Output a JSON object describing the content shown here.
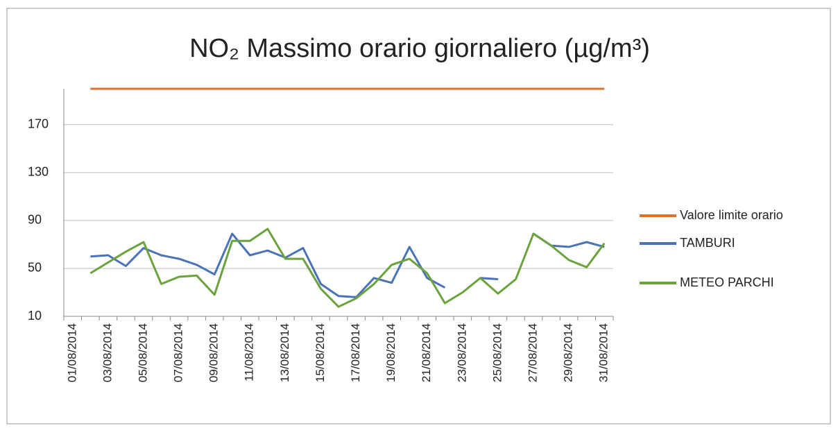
{
  "chart_data": {
    "type": "line",
    "title": "NO₂ Massimo orario giornaliero (µg/m³)",
    "categories": [
      "01/08/2014",
      null,
      "03/08/2014",
      null,
      "05/08/2014",
      null,
      "07/08/2014",
      null,
      "09/08/2014",
      null,
      "11/08/2014",
      null,
      "13/08/2014",
      null,
      "15/08/2014",
      null,
      "17/08/2014",
      null,
      "19/08/2014",
      null,
      "21/08/2014",
      null,
      "23/08/2014",
      null,
      "25/08/2014",
      null,
      "27/08/2014",
      null,
      "29/08/2014",
      null,
      "31/08/2014"
    ],
    "series": [
      {
        "name": "Valore limite orario",
        "color": "#d9722a",
        "values": [
          null,
          200,
          200,
          200,
          200,
          200,
          200,
          200,
          200,
          200,
          200,
          200,
          200,
          200,
          200,
          200,
          200,
          200,
          200,
          200,
          200,
          200,
          200,
          200,
          200,
          200,
          200,
          200,
          200,
          200,
          200
        ]
      },
      {
        "name": "TAMBURI",
        "color": "#4a72b8",
        "values": [
          null,
          60,
          61,
          52,
          67,
          61,
          58,
          53,
          45,
          79,
          61,
          65,
          59,
          67,
          37,
          27,
          26,
          42,
          38,
          68,
          42,
          34,
          null,
          42,
          41,
          null,
          79,
          69,
          68,
          72,
          68
        ]
      },
      {
        "name": "METEO PARCHI",
        "color": "#6aa23c",
        "values": [
          null,
          46,
          55,
          64,
          72,
          37,
          43,
          44,
          28,
          73,
          73,
          83,
          58,
          58,
          33,
          18,
          25,
          37,
          53,
          58,
          46,
          21,
          30,
          42,
          29,
          41,
          79,
          69,
          57,
          51,
          71
        ]
      }
    ],
    "ylim": [
      10,
      200
    ],
    "yticks": [
      10,
      50,
      90,
      130,
      170
    ],
    "grid": true,
    "legend": "right"
  }
}
